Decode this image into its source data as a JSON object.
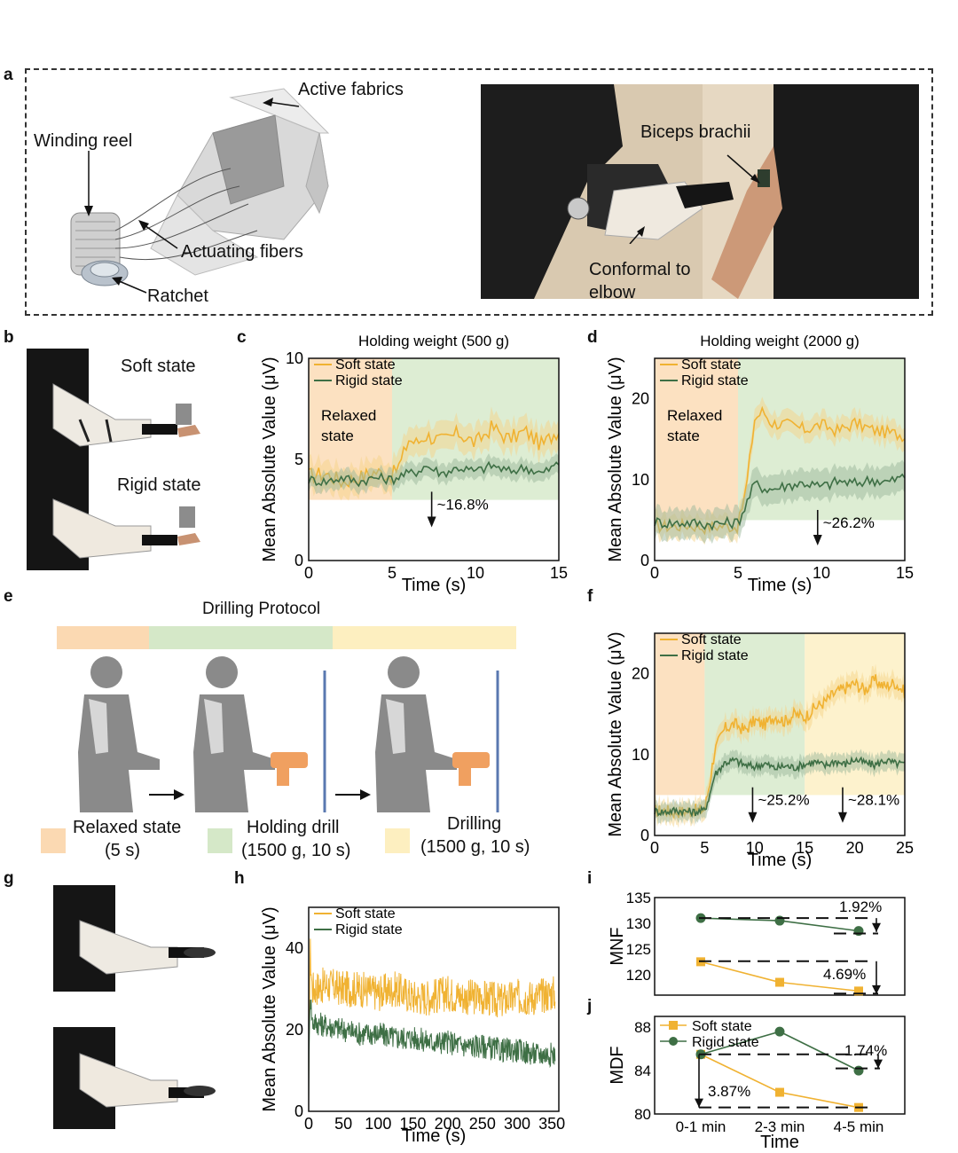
{
  "panel_labels": {
    "a": "a",
    "b": "b",
    "c": "c",
    "d": "d",
    "e": "e",
    "f": "f",
    "g": "g",
    "h": "h",
    "i": "i",
    "j": "j"
  },
  "panel_a": {
    "active_fabrics": "Active fabrics",
    "winding_reel": "Winding reel",
    "actuating_fibers": "Actuating fibers",
    "ratchet": "Ratchet",
    "biceps": "Biceps brachii",
    "conformal_1": "Conformal to",
    "conformal_2": "elbow"
  },
  "panel_b": {
    "soft": "Soft state",
    "rigid": "Rigid state"
  },
  "panel_e": {
    "title": "Drilling Protocol",
    "legend": [
      {
        "line1": "Relaxed state",
        "line2": "(5 s)",
        "color": "#fbd9b2"
      },
      {
        "line1": "Holding drill",
        "line2": "(1500 g, 10 s)",
        "color": "#d5e8c8"
      },
      {
        "line1": "Drilling",
        "line2": "(1500 g, 10 s)",
        "color": "#fdefc0"
      }
    ]
  },
  "colors": {
    "soft": "#f0b232",
    "rigid": "#3e6f45",
    "soft_band": "#f6d48a",
    "rigid_band": "#9cb89b",
    "relaxed": "#fbd9b2",
    "holding": "#d5e8c8",
    "drilling": "#fdefc0",
    "drill": "#f0a060"
  },
  "chart_data": [
    {
      "id": "c",
      "type": "line",
      "title": "Holding weight (500 g)",
      "xlabel": "Time (s)",
      "ylabel": "Mean Absolute Value (μV)",
      "xlim": [
        0,
        15
      ],
      "ylim": [
        0,
        10
      ],
      "xticks": [
        0,
        5,
        10,
        15
      ],
      "yticks": [
        0,
        5,
        10
      ],
      "legend": [
        "Soft state",
        "Rigid state"
      ],
      "region_label": [
        "Relaxed",
        "state"
      ],
      "annotations": [
        {
          "text": "~16.8%",
          "x": 7.8,
          "y": 2.7
        }
      ],
      "series": [
        {
          "name": "Soft state",
          "x": [
            0,
            1,
            2,
            3,
            4,
            5,
            5.5,
            6,
            6.5,
            7,
            8,
            9,
            10,
            11,
            12,
            13,
            14,
            15
          ],
          "values": [
            4.2,
            4.3,
            3.9,
            4.1,
            4.4,
            4.2,
            4.8,
            6.0,
            5.8,
            6.2,
            5.9,
            6.3,
            5.8,
            6.6,
            6.0,
            6.4,
            5.7,
            6.5
          ]
        },
        {
          "name": "Rigid state",
          "x": [
            0,
            1,
            2,
            3,
            4,
            5,
            5.5,
            6,
            6.5,
            7,
            8,
            9,
            10,
            11,
            12,
            13,
            14,
            15
          ],
          "values": [
            4.0,
            3.9,
            4.1,
            3.9,
            4.1,
            4.0,
            4.2,
            4.3,
            4.4,
            4.7,
            4.3,
            4.6,
            4.4,
            4.7,
            4.4,
            4.6,
            4.3,
            4.8
          ]
        }
      ]
    },
    {
      "id": "d",
      "type": "line",
      "title": "Holding weight (2000 g)",
      "xlabel": "Time (s)",
      "ylabel": "Mean Absolute Value (μV)",
      "xlim": [
        0,
        15
      ],
      "ylim": [
        0,
        25
      ],
      "xticks": [
        0,
        5,
        10,
        15
      ],
      "yticks": [
        0,
        10,
        20
      ],
      "legend": [
        "Soft state",
        "Rigid state"
      ],
      "region_label": [
        "Relaxed",
        "state"
      ],
      "annotations": [
        {
          "text": "~26.2%",
          "x": 10.2,
          "y": 4.5
        }
      ],
      "series": [
        {
          "name": "Soft state",
          "x": [
            0,
            1,
            2,
            3,
            4,
            5,
            5.5,
            6,
            6.5,
            7,
            8,
            9,
            10,
            11,
            12,
            13,
            14,
            15
          ],
          "values": [
            4.3,
            4.2,
            4.4,
            4.1,
            4.3,
            4.2,
            9.0,
            17.5,
            18.5,
            17.0,
            16.8,
            16.2,
            16.8,
            16.0,
            17.0,
            16.2,
            15.8,
            15.5
          ]
        },
        {
          "name": "Rigid state",
          "x": [
            0,
            1,
            2,
            3,
            4,
            5,
            5.5,
            6,
            6.5,
            7,
            8,
            9,
            10,
            11,
            12,
            13,
            14,
            15
          ],
          "values": [
            4.8,
            4.6,
            4.7,
            4.5,
            4.6,
            4.7,
            7.0,
            9.5,
            9.0,
            8.8,
            9.3,
            9.6,
            9.1,
            9.8,
            9.5,
            10.0,
            9.7,
            10.4
          ]
        }
      ]
    },
    {
      "id": "f",
      "type": "line",
      "xlabel": "Time (s)",
      "ylabel": "Mean Absolute Value (μV)",
      "xlim": [
        0,
        25
      ],
      "ylim": [
        0,
        25
      ],
      "xticks": [
        0,
        5,
        10,
        15,
        20,
        25
      ],
      "yticks": [
        0,
        10,
        20
      ],
      "legend": [
        "Soft state",
        "Rigid state"
      ],
      "annotations": [
        {
          "text": "~25.2%",
          "x": 10.5,
          "y": 4.2
        },
        {
          "text": "~28.1%",
          "x": 19.5,
          "y": 4.2
        }
      ],
      "series": [
        {
          "name": "Soft state",
          "x": [
            0,
            1,
            2,
            3,
            4,
            5,
            5.5,
            6,
            7,
            8,
            9,
            10,
            11,
            12,
            13,
            14,
            15,
            16,
            17,
            18,
            19,
            20,
            21,
            22,
            23,
            24,
            25
          ],
          "values": [
            3.0,
            3.1,
            2.9,
            3.0,
            3.1,
            3.2,
            6.5,
            10.5,
            13.2,
            13.8,
            13.0,
            14.2,
            13.7,
            14.8,
            14.1,
            15.0,
            14.6,
            15.8,
            16.5,
            17.6,
            18.2,
            18.8,
            18.0,
            19.2,
            18.4,
            18.9,
            17.7
          ]
        },
        {
          "name": "Rigid state",
          "x": [
            0,
            1,
            2,
            3,
            4,
            5,
            5.5,
            6,
            7,
            8,
            9,
            10,
            11,
            12,
            13,
            14,
            15,
            16,
            17,
            18,
            19,
            20,
            21,
            22,
            23,
            24,
            25
          ],
          "values": [
            3.0,
            2.9,
            3.1,
            3.0,
            2.9,
            3.1,
            5.0,
            7.5,
            9.0,
            9.3,
            8.7,
            8.5,
            8.9,
            8.3,
            8.6,
            8.4,
            8.8,
            9.1,
            8.6,
            9.2,
            8.8,
            9.4,
            9.0,
            8.7,
            9.3,
            8.9,
            8.8
          ]
        }
      ]
    },
    {
      "id": "h",
      "type": "line",
      "xlabel": "Time (s)",
      "ylabel": "Mean Absolute Value (μV)",
      "xlim": [
        0,
        360
      ],
      "ylim": [
        0,
        50
      ],
      "xticks": [
        0,
        50,
        100,
        150,
        200,
        250,
        300,
        350
      ],
      "yticks": [
        0,
        20,
        40
      ],
      "legend": [
        "Soft state",
        "Rigid state"
      ],
      "series": [
        {
          "name": "Soft state",
          "x": [
            0,
            2,
            5,
            25,
            50,
            75,
            100,
            125,
            150,
            175,
            200,
            225,
            250,
            275,
            300,
            325,
            350,
            355
          ],
          "values": [
            4,
            40,
            30,
            31,
            30,
            30,
            29,
            30,
            28,
            28,
            29,
            28,
            28,
            27,
            28,
            28,
            29,
            29
          ]
        },
        {
          "name": "Rigid state",
          "x": [
            0,
            2,
            5,
            25,
            50,
            75,
            100,
            125,
            150,
            175,
            200,
            225,
            250,
            275,
            300,
            325,
            350,
            355
          ],
          "values": [
            4,
            30,
            22,
            21,
            20,
            19,
            19,
            18,
            18,
            17,
            17,
            16,
            16,
            15,
            15,
            14,
            14,
            14
          ]
        }
      ]
    },
    {
      "id": "i",
      "type": "line",
      "ylabel": "MNF",
      "ylim": [
        116,
        135
      ],
      "yticks": [
        120,
        125,
        130,
        135
      ],
      "categories": [
        "0-1 min",
        "2-3 min",
        "4-5 min"
      ],
      "annotations": [
        {
          "text": "1.92%"
        },
        {
          "text": "4.69%"
        }
      ],
      "series": [
        {
          "name": "Rigid state",
          "values": [
            131.0,
            130.5,
            128.5
          ]
        },
        {
          "name": "Soft state",
          "values": [
            122.5,
            118.5,
            116.8
          ]
        }
      ]
    },
    {
      "id": "j",
      "type": "line",
      "ylabel": "MDF",
      "xlabel": "Time",
      "ylim": [
        80,
        89
      ],
      "yticks": [
        80,
        84,
        88
      ],
      "categories": [
        "0-1 min",
        "2-3 min",
        "4-5 min"
      ],
      "legend": [
        "Soft state",
        "Rigid state"
      ],
      "annotations": [
        {
          "text": "1.74%"
        },
        {
          "text": "3.87%"
        }
      ],
      "series": [
        {
          "name": "Soft state",
          "values": [
            85.5,
            82.0,
            80.6
          ]
        },
        {
          "name": "Rigid state",
          "values": [
            85.5,
            87.6,
            84.0
          ]
        }
      ]
    }
  ]
}
